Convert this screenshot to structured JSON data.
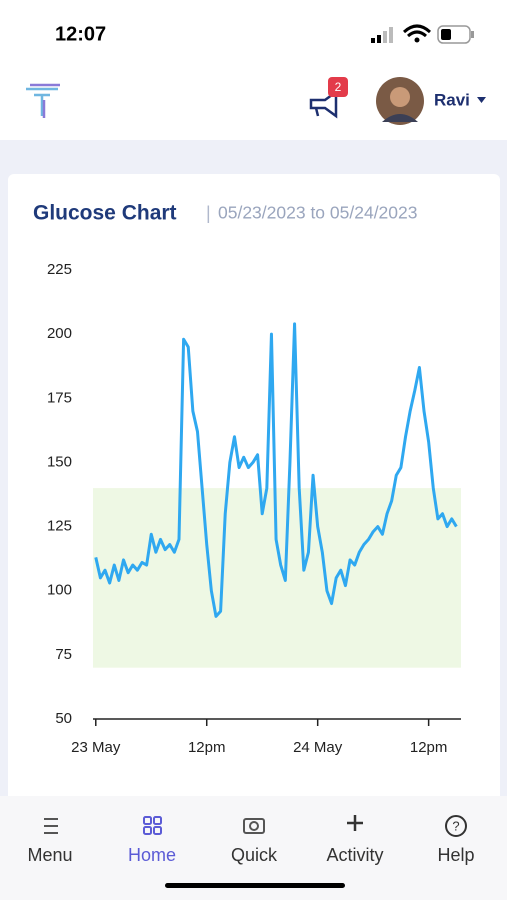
{
  "status_bar": {
    "time": "12:07"
  },
  "header": {
    "badge": "2",
    "user": "Ravi"
  },
  "chart_data": {
    "type": "line",
    "title": "Glucose Chart",
    "subtitle": "05/23/2023 to 05/24/2023",
    "x": [
      0,
      0.5,
      1,
      1.5,
      2,
      2.5,
      3,
      3.5,
      4,
      4.5,
      5,
      5.5,
      6,
      6.5,
      7,
      7.5,
      8,
      8.5,
      9,
      9.5,
      10,
      10.5,
      11,
      11.5,
      12,
      12.5,
      13,
      13.5,
      14,
      14.5,
      15,
      15.5,
      16,
      16.5,
      17,
      17.5,
      18,
      18.5,
      19,
      19.5,
      20,
      20.5,
      21,
      21.5,
      22,
      22.5,
      23,
      23.5,
      24,
      24.5,
      25,
      25.5,
      26,
      26.5,
      27,
      27.5,
      28,
      28.5,
      29,
      29.5,
      30,
      30.5,
      31,
      31.5,
      32,
      32.5,
      33,
      33.5,
      34,
      34.5,
      35,
      35.5,
      36,
      36.5,
      37,
      37.5,
      38,
      38.5,
      39
    ],
    "series": [
      {
        "color": "#2fa8f0",
        "values": [
          113,
          105,
          108,
          103,
          110,
          104,
          112,
          107,
          110,
          108,
          111,
          110,
          122,
          115,
          120,
          116,
          118,
          115,
          120,
          198,
          195,
          170,
          162,
          140,
          118,
          100,
          90,
          92,
          130,
          150,
          160,
          148,
          152,
          148,
          150,
          153,
          130,
          140,
          200,
          120,
          110,
          104,
          150,
          204,
          140,
          108,
          115,
          145,
          125,
          115,
          100,
          95,
          105,
          108,
          102,
          112,
          110,
          115,
          118,
          120,
          123,
          125,
          122,
          130,
          135,
          145,
          148,
          160,
          170,
          178,
          187,
          170,
          158,
          140,
          128,
          130,
          125,
          128,
          125
        ]
      }
    ],
    "xlim": [
      -0.3,
      39.5
    ],
    "xticks": [
      {
        "value": 0,
        "label": "23 May"
      },
      {
        "value": 12,
        "label": "12pm"
      },
      {
        "value": 24,
        "label": "24 May"
      },
      {
        "value": 36,
        "label": "12pm"
      }
    ],
    "ylim": [
      50,
      225
    ],
    "yticks": [
      50,
      75,
      100,
      125,
      150,
      175,
      200,
      225
    ],
    "band": {
      "range": [
        70,
        140
      ],
      "color": "#eef8e4"
    }
  },
  "nav": {
    "items": [
      "Menu",
      "Home",
      "Quick",
      "Activity",
      "Help"
    ],
    "active": 1
  }
}
